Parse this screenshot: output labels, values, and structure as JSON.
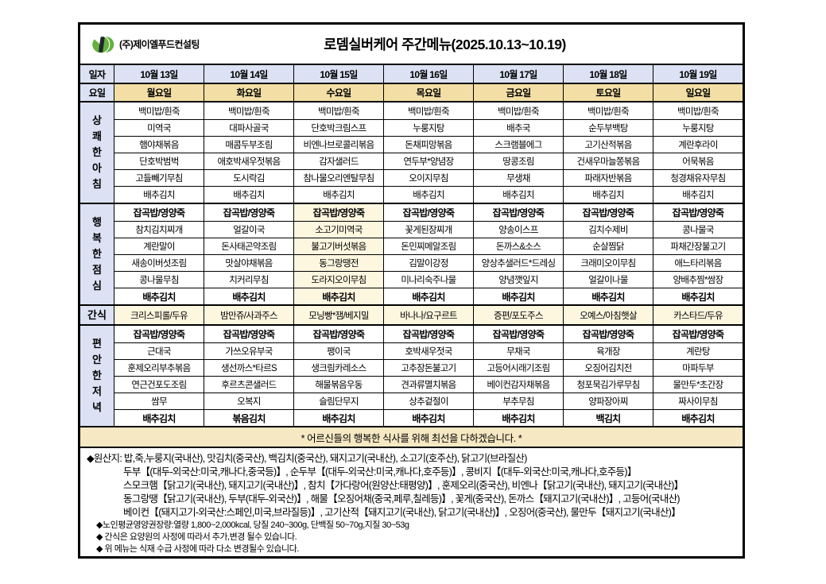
{
  "header": {
    "company": "(주)제이엘푸드컨설팅",
    "title": "로뎀실버케어 주간메뉴(2025.10.13~10.19)",
    "logo": "jl-foods-green-logo"
  },
  "columns": {
    "date_label": "일자",
    "day_label": "요일",
    "dates": [
      "10월 13일",
      "10월 14일",
      "10월 15일",
      "10월 16일",
      "10월 17일",
      "10월 18일",
      "10월 19일"
    ],
    "days": [
      "월요일",
      "화요일",
      "수요일",
      "목요일",
      "금요일",
      "토요일",
      "일요일"
    ]
  },
  "sections": [
    {
      "id": "breakfast",
      "label": "상쾌한아침",
      "vertical": true,
      "bold_rows": [],
      "highlight_col": null,
      "all_cream": false,
      "rows": [
        [
          "백미밥/흰죽",
          "백미밥/흰죽",
          "백미밥/흰죽",
          "백미밥/흰죽",
          "백미밥/흰죽",
          "백미밥/흰죽",
          "백미밥/흰죽"
        ],
        [
          "미역국",
          "대파사골국",
          "단호박크림스프",
          "누룽지탕",
          "배추국",
          "순두부백탕",
          "누룽지탕"
        ],
        [
          "햄야채볶음",
          "매콤두부조림",
          "비엔나브로콜리볶음",
          "돈채피망볶음",
          "스크램블에그",
          "고기산적볶음",
          "계란후라이"
        ],
        [
          "단호박범벅",
          "애호박새우젓볶음",
          "감자샐러드",
          "연두부*양념장",
          "땅콩조림",
          "건새우마늘쫑볶음",
          "어묵볶음"
        ],
        [
          "고들빼기무침",
          "도시락김",
          "참나물오리엔탈무침",
          "오이지무침",
          "무생채",
          "파래자반볶음",
          "청경채유자무침"
        ],
        [
          "배추김치",
          "배추김치",
          "배추김치",
          "배추김치",
          "배추김치",
          "배추김치",
          "배추김치"
        ]
      ]
    },
    {
      "id": "lunch",
      "label": "행복한점심",
      "vertical": true,
      "bold_rows": [
        0,
        5
      ],
      "highlight_col": 2,
      "all_cream": false,
      "rows": [
        [
          "잡곡밥/영양죽",
          "잡곡밥/영양죽",
          "잡곡밥/영양죽",
          "잡곡밥/영양죽",
          "잡곡밥/영양죽",
          "잡곡밥/영양죽",
          "잡곡밥/영양죽"
        ],
        [
          "참치김치찌개",
          "얼갈이국",
          "소고기미역국",
          "꽃게된장찌개",
          "양송이스프",
          "김치수제비",
          "콩나물국"
        ],
        [
          "계란말이",
          "돈사태곤약조림",
          "불고기버섯볶음",
          "돈민찌메알조림",
          "돈까스&소스",
          "순살찜닭",
          "파채간장불고기"
        ],
        [
          "새송이버섯조림",
          "맛살야채볶음",
          "동그랑땡전",
          "김말이강정",
          "양상추샐러드*드레싱",
          "크래미오이무침",
          "애느타리볶음"
        ],
        [
          "콩나물무침",
          "치커리무침",
          "도라지오이무침",
          "미나리숙주나물",
          "양념깻잎지",
          "얼갈이나물",
          "양배추찜*쌈장"
        ],
        [
          "배추김치",
          "배추김치",
          "배추김치",
          "배추김치",
          "배추김치",
          "배추김치",
          "배추김치"
        ]
      ]
    },
    {
      "id": "snack",
      "label": "간식",
      "vertical": false,
      "bold_rows": [],
      "highlight_col": null,
      "all_cream": true,
      "rows": [
        [
          "크리스피롤/두유",
          "밤만쥬/사과주스",
          "모닝빵*잼/베지밀",
          "바나나/요구르트",
          "증편/포도주스",
          "오예스/아침햇살",
          "카스타드/두유"
        ]
      ]
    },
    {
      "id": "dinner",
      "label": "편안한저녁",
      "vertical": true,
      "bold_rows": [
        0,
        5
      ],
      "highlight_col": null,
      "all_cream": false,
      "rows": [
        [
          "잡곡밥/영양죽",
          "잡곡밥/영양죽",
          "잡곡밥/영양죽",
          "잡곡밥/영양죽",
          "잡곡밥/영양죽",
          "잡곡밥/영양죽",
          "잡곡밥/영양죽"
        ],
        [
          "근대국",
          "가쓰오유부국",
          "팽이국",
          "호박새우젓국",
          "무채국",
          "육개장",
          "계란탕"
        ],
        [
          "훈제오리부추볶음",
          "생선까스*타르S",
          "생크림카레소스",
          "고추장돈불고기",
          "고등어시래기조림",
          "오징어김치전",
          "마파두부"
        ],
        [
          "연근건포도조림",
          "후르츠콘샐러드",
          "해물볶음우동",
          "견과류멸치볶음",
          "베이컨감자채볶음",
          "청포묵김가루무침",
          "물만두*초간장"
        ],
        [
          "쌈무",
          "오복지",
          "슬림단무지",
          "상추겉절이",
          "부추무침",
          "양파장아찌",
          "짜사이무침"
        ],
        [
          "배추김치",
          "볶음김치",
          "배추김치",
          "배추김치",
          "배추김치",
          "백김치",
          "배추김치"
        ]
      ]
    }
  ],
  "banner": "* 어르신들의 행복한 식사를 위해 최선을 다하겠습니다. *",
  "footer": {
    "origin_lines": [
      "◆원산지: 밥,죽,누룽지(국내산), 맛김치(중국산), 백김치(중국산), 돼지고기(국내산), 소고기(호주산), 닭고기(브라질산)",
      "두부【(대두-외국산:미국,캐나다,중국등)】, 순두부【(대두-외국산:미국,캐나다,호주등)】, 콩비지【(대두-외국산:미국,캐나다,호주등)】",
      "스모크햄【닭고기(국내산), 돼지고기(국내산)】, 참치【가다랑어(원양산:태평양)】, 훈제오리(중국산), 비엔나【닭고기(국내산), 돼지고기(국내산)】",
      "동그랑땡【닭고기(국내산), 두부(대두-외국산)】, 해물【오징어채(중국,페루,칠레등)】, 꽃게(중국산), 돈까스【돼지고기(국내산)】, 고등어(국내산)",
      "베이컨【(돼지고기-외국산:스페인,미국,브라질등)】, 고기산적【돼지고기(국내산), 닭고기(국내산)】, 오징어(중국산), 물만두【돼지고기(국내산)】"
    ],
    "notes": [
      "◆노인평균영양권장량:열량 1,800~2,000kcal, 당질 240~300g, 단백질 50~70g,지질 30~53g",
      "◆ 간식은 요양원의 사정에 따라서 추가,변경 될수 있습니다.",
      "◆ 위 메뉴는 식재 수급 사정에 따라 다소 변경될수 있습니다."
    ]
  },
  "colors": {
    "lavender": "#dce2f4",
    "gold": "#f3dfa5",
    "cream": "#fdf7e0",
    "banner_bg": "#f6e8c3",
    "logo_green": "#63b23e",
    "logo_dark": "#20242e",
    "border": "#000000"
  }
}
